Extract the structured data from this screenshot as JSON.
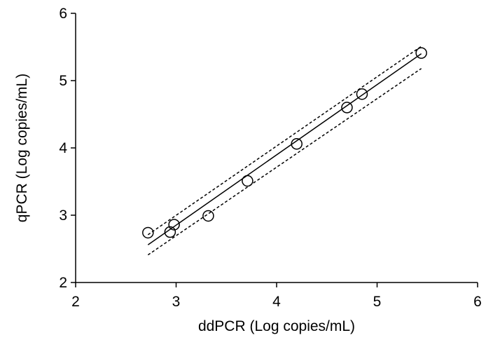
{
  "chart_data": {
    "type": "scatter",
    "xlabel": "ddPCR (Log copies/mL)",
    "ylabel": "qPCR (Log copies/mL)",
    "xlim": [
      2,
      6
    ],
    "ylim": [
      2,
      6
    ],
    "xticks": [
      2,
      3,
      4,
      5,
      6
    ],
    "yticks": [
      2,
      3,
      4,
      5,
      6
    ],
    "color": "#000000",
    "series": [
      {
        "style": "marker",
        "x": [
          2.72,
          2.94,
          2.98,
          3.32,
          3.71,
          4.2,
          4.7,
          4.85,
          5.44
        ],
        "values": [
          2.74,
          2.75,
          2.86,
          2.99,
          3.51,
          4.06,
          4.6,
          4.8,
          5.41
        ]
      },
      {
        "style": "solid",
        "x": [
          2.72,
          5.44
        ],
        "values": [
          2.56,
          5.4
        ]
      },
      {
        "style": "dotted",
        "x": [
          2.72,
          5.44
        ],
        "values": [
          2.71,
          5.51
        ]
      },
      {
        "style": "dotted",
        "x": [
          2.72,
          5.44
        ],
        "values": [
          2.41,
          5.18
        ]
      }
    ]
  }
}
